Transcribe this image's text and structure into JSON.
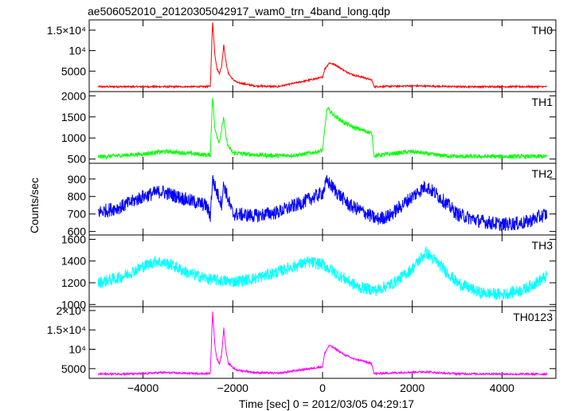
{
  "title": "ae506052010_20120305042917_wam0_trn_4band_long.qdp",
  "ylabel": "Counts/sec",
  "xlabel": "Time [sec] 0 = 2012/03/05 04:29:17",
  "xlim": [
    -5200,
    5200
  ],
  "x_ticks": [
    -4000,
    -2000,
    0,
    2000,
    4000
  ],
  "chart_data": [
    {
      "type": "line",
      "name": "TH0",
      "color": "#ff0000",
      "ylim": [
        0,
        17500
      ],
      "yticks": [
        {
          "value": 5000,
          "label": "5000"
        },
        {
          "value": 10000,
          "label": "10⁴"
        },
        {
          "value": 15000,
          "label": "1.5×10⁴"
        }
      ],
      "x": [
        -5000,
        -4000,
        -3000,
        -2600,
        -2500,
        -2450,
        -2400,
        -2350,
        -2300,
        -2250,
        -2200,
        -2150,
        -2100,
        -2000,
        -1900,
        -1500,
        -1000,
        0,
        50,
        150,
        300,
        500,
        700,
        900,
        1100,
        1150,
        2000,
        3000,
        4000,
        5000
      ],
      "y": [
        1200,
        1200,
        1200,
        1200,
        1300,
        17000,
        9000,
        5500,
        4500,
        6000,
        11500,
        7000,
        4500,
        3000,
        2200,
        1400,
        1200,
        3500,
        5500,
        7000,
        6500,
        5000,
        4000,
        3500,
        2800,
        1200,
        1400,
        1200,
        1200,
        1200
      ],
      "noise": 200
    },
    {
      "type": "line",
      "name": "TH1",
      "color": "#00ff00",
      "ylim": [
        400,
        2100
      ],
      "yticks": [
        {
          "value": 500,
          "label": "500"
        },
        {
          "value": 1000,
          "label": "1000"
        },
        {
          "value": 1500,
          "label": "1500"
        },
        {
          "value": 2000,
          "label": "2000"
        }
      ],
      "x": [
        -5000,
        -4000,
        -3500,
        -3000,
        -2600,
        -2500,
        -2450,
        -2400,
        -2300,
        -2200,
        -2150,
        -2100,
        -2000,
        -1500,
        -1000,
        -500,
        0,
        100,
        300,
        500,
        700,
        1000,
        1100,
        1150,
        2000,
        2500,
        3000,
        4000,
        5000
      ],
      "y": [
        550,
        620,
        680,
        640,
        600,
        600,
        2000,
        1200,
        900,
        1500,
        1000,
        800,
        650,
        600,
        580,
        600,
        700,
        1700,
        1500,
        1350,
        1250,
        1150,
        1100,
        580,
        680,
        600,
        560,
        560,
        560
      ],
      "noise": 50
    },
    {
      "type": "line",
      "name": "TH2",
      "color": "#0000ff",
      "ylim": [
        580,
        990
      ],
      "yticks": [
        {
          "value": 600,
          "label": "600"
        },
        {
          "value": 700,
          "label": "700"
        },
        {
          "value": 800,
          "label": "800"
        },
        {
          "value": 900,
          "label": "900"
        }
      ],
      "x": [
        -5000,
        -4500,
        -4000,
        -3600,
        -3000,
        -2600,
        -2500,
        -2450,
        -2350,
        -2250,
        -2200,
        -2100,
        -2000,
        -1500,
        -1000,
        -500,
        0,
        100,
        300,
        600,
        1000,
        1200,
        1500,
        2000,
        2300,
        2600,
        3000,
        3500,
        4000,
        4500,
        5000
      ],
      "y": [
        710,
        740,
        800,
        830,
        780,
        750,
        690,
        900,
        820,
        760,
        870,
        780,
        700,
        690,
        710,
        760,
        820,
        890,
        830,
        750,
        700,
        670,
        690,
        800,
        860,
        800,
        700,
        660,
        640,
        650,
        700
      ],
      "noise": 40
    },
    {
      "type": "line",
      "name": "TH3",
      "color": "#00ffff",
      "ylim": [
        980,
        1640
      ],
      "yticks": [
        {
          "value": 1000,
          "label": "1000"
        },
        {
          "value": 1200,
          "label": "1200"
        },
        {
          "value": 1400,
          "label": "1400"
        },
        {
          "value": 1600,
          "label": "1600"
        }
      ],
      "x": [
        -5000,
        -4500,
        -4000,
        -3700,
        -3400,
        -3000,
        -2500,
        -2000,
        -1500,
        -1000,
        -500,
        -300,
        0,
        400,
        800,
        1200,
        1600,
        2000,
        2300,
        2600,
        3000,
        3500,
        4000,
        4500,
        5000
      ],
      "y": [
        1200,
        1250,
        1350,
        1400,
        1370,
        1290,
        1230,
        1210,
        1240,
        1300,
        1370,
        1390,
        1370,
        1260,
        1160,
        1130,
        1200,
        1330,
        1480,
        1370,
        1200,
        1110,
        1090,
        1140,
        1260
      ],
      "noise": 55
    },
    {
      "type": "line",
      "name": "TH0123",
      "color": "#ff00ff",
      "ylim": [
        2500,
        21000
      ],
      "yticks": [
        {
          "value": 5000,
          "label": "5000"
        },
        {
          "value": 10000,
          "label": "10⁴"
        },
        {
          "value": 15000,
          "label": "1.5×10⁴"
        },
        {
          "value": 20000,
          "label": "2×10⁴"
        }
      ],
      "x": [
        -5000,
        -4000,
        -3600,
        -3000,
        -2600,
        -2500,
        -2450,
        -2400,
        -2350,
        -2300,
        -2250,
        -2200,
        -2150,
        -2100,
        -2000,
        -1900,
        -1500,
        -1000,
        0,
        50,
        150,
        300,
        500,
        700,
        900,
        1100,
        1150,
        2000,
        2300,
        2600,
        3000,
        4000,
        5000
      ],
      "y": [
        3600,
        3700,
        4000,
        3800,
        3700,
        3800,
        19500,
        11000,
        7500,
        6300,
        8500,
        15500,
        9500,
        6500,
        5200,
        4600,
        4000,
        3800,
        5500,
        9000,
        11000,
        10000,
        8500,
        7500,
        7000,
        6200,
        3700,
        4100,
        4200,
        3900,
        3700,
        3600,
        3600
      ],
      "noise": 250
    }
  ]
}
